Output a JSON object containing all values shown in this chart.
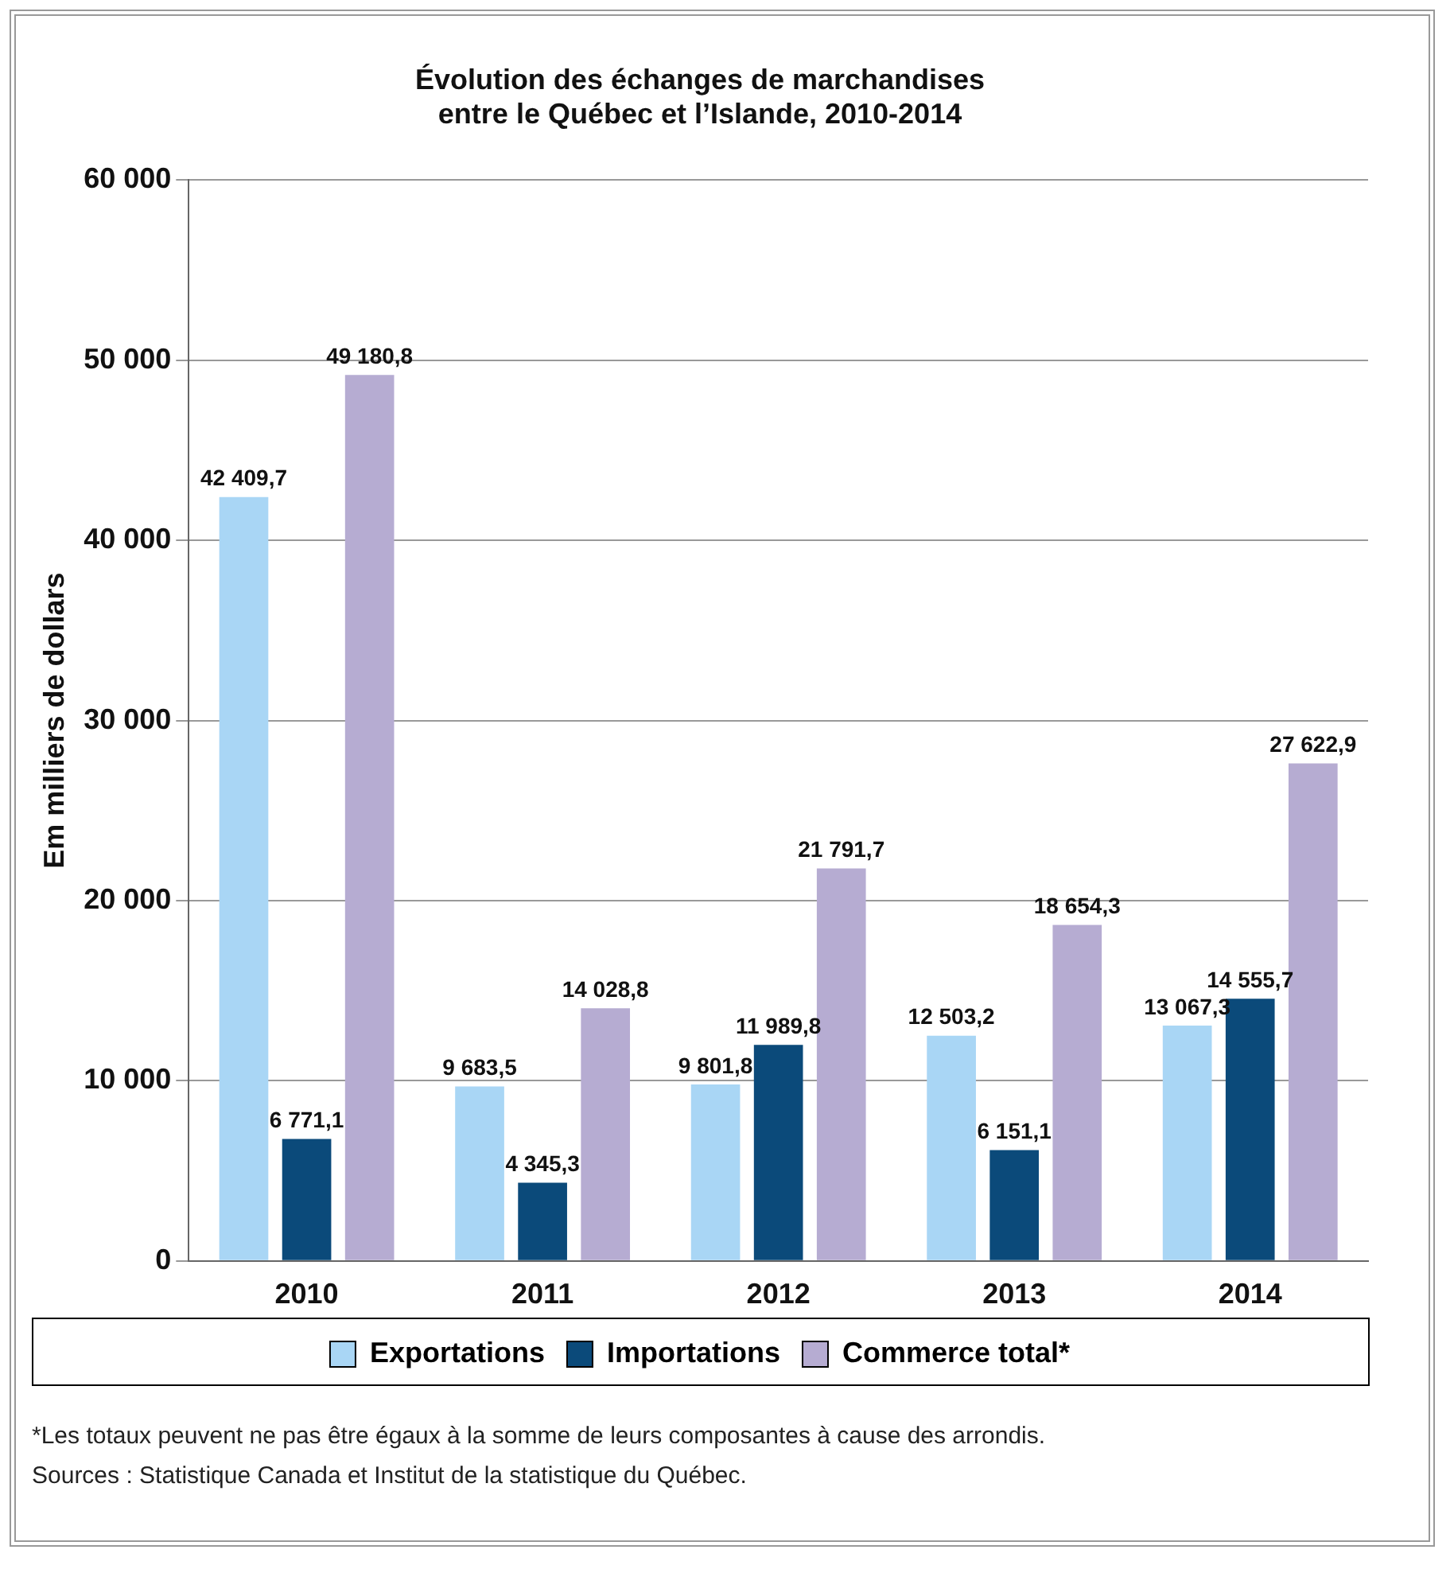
{
  "chart_data": {
    "type": "bar",
    "title": "Évolution des échanges de marchandises\nentre le Québec et l’Islande, 2010-2014",
    "ylabel": "Em milliers de dollars",
    "categories": [
      "2010",
      "2011",
      "2012",
      "2013",
      "2014"
    ],
    "series": [
      {
        "name": "Exportations",
        "color": "#a9d6f5",
        "values": [
          42409.7,
          9683.5,
          9801.8,
          12503.2,
          13067.3
        ],
        "value_labels": [
          "42 409,7",
          "9 683,5",
          "9 801,8",
          "12 503,2",
          "13 067,3"
        ]
      },
      {
        "name": "Importations",
        "color": "#0b4a7a",
        "values": [
          6771.1,
          4345.3,
          11989.8,
          6151.1,
          14555.7
        ],
        "value_labels": [
          "6 771,1",
          "4 345,3",
          "11 989,8",
          "6 151,1",
          "14 555,7"
        ]
      },
      {
        "name": "Commerce total*",
        "color": "#b6acd2",
        "values": [
          49180.8,
          14028.8,
          21791.7,
          18654.3,
          27622.9
        ],
        "value_labels": [
          "49 180,8",
          "14 028,8",
          "21 791,7",
          "18 654,3",
          "27 622,9"
        ]
      }
    ],
    "ylim": [
      0,
      60000
    ],
    "yticks": [
      {
        "value": 0,
        "label": "0"
      },
      {
        "value": 10000,
        "label": "10 000"
      },
      {
        "value": 20000,
        "label": "20 000"
      },
      {
        "value": 30000,
        "label": "30 000"
      },
      {
        "value": 40000,
        "label": "40 000"
      },
      {
        "value": 50000,
        "label": "50 000"
      },
      {
        "value": 60000,
        "label": "60 000"
      }
    ],
    "grid": "y",
    "legend": "bottom",
    "annotations": [
      "*Les totaux peuvent ne pas être égaux à la somme de leurs composantes à cause des arrondis.",
      "Sources : Statistique Canada et Institut de la statistique du Québec."
    ]
  }
}
